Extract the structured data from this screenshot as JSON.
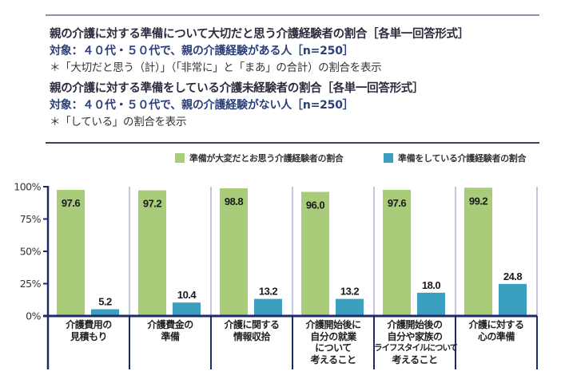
{
  "header": {
    "title_1": "親の介護に対する準備について大切だと思う介護経験者の割合［各単一回答形式］",
    "target_1": "対象：４０代・５０代で、親の介護経験がある人［n=250］",
    "note_1": "＊「大切だと思う（計）」（「非常に」と「まあ」の合計）の割合を表示",
    "title_2": "親の介護に対する準備をしている介護未経験者の割合［各単一回答形式］",
    "target_2": "対象：４０代・５０代で、親の介護経験がない人［n=250］",
    "note_2": "＊「している」の割合を表示"
  },
  "colors": {
    "green": "#a8cc7a",
    "blue": "#3b9fbf",
    "axis": "#1f2a6b",
    "divider": "#9aa3c6"
  },
  "chart_data": {
    "type": "bar",
    "title": "",
    "xlabel": "",
    "ylabel": "",
    "ylim": [
      0,
      100
    ],
    "yticks": [
      "0%",
      "25%",
      "50%",
      "75%",
      "100%"
    ],
    "ytick_values": [
      0,
      25,
      50,
      75,
      100
    ],
    "legend_position": "top-right",
    "categories": [
      [
        "介護費用の",
        "見積もり"
      ],
      [
        "介護費金の",
        "準備"
      ],
      [
        "介護に関する",
        "情報収拾"
      ],
      [
        "介護開始後に",
        "自分の就業",
        "について",
        "考えること"
      ],
      [
        "介護開始後の",
        "自分や家族の",
        "ライフスタイルについて",
        "考えること"
      ],
      [
        "介護に対する",
        "心の準備"
      ]
    ],
    "series": [
      {
        "name": "準備が大変だとお思う介護経験者の割合",
        "color": "#a8cc7a",
        "values": [
          97.6,
          97.2,
          98.8,
          96.0,
          97.6,
          99.2
        ],
        "labels": [
          "97.6",
          "97.2",
          "98.8",
          "96.0",
          "97.6",
          "99.2"
        ]
      },
      {
        "name": "準備をしている介護経験者の割合",
        "color": "#3b9fbf",
        "values": [
          5.2,
          10.4,
          13.2,
          13.2,
          18.0,
          24.8
        ],
        "labels": [
          "5.2",
          "10.4",
          "13.2",
          "13.2",
          "18.0",
          "24.8"
        ]
      }
    ]
  }
}
